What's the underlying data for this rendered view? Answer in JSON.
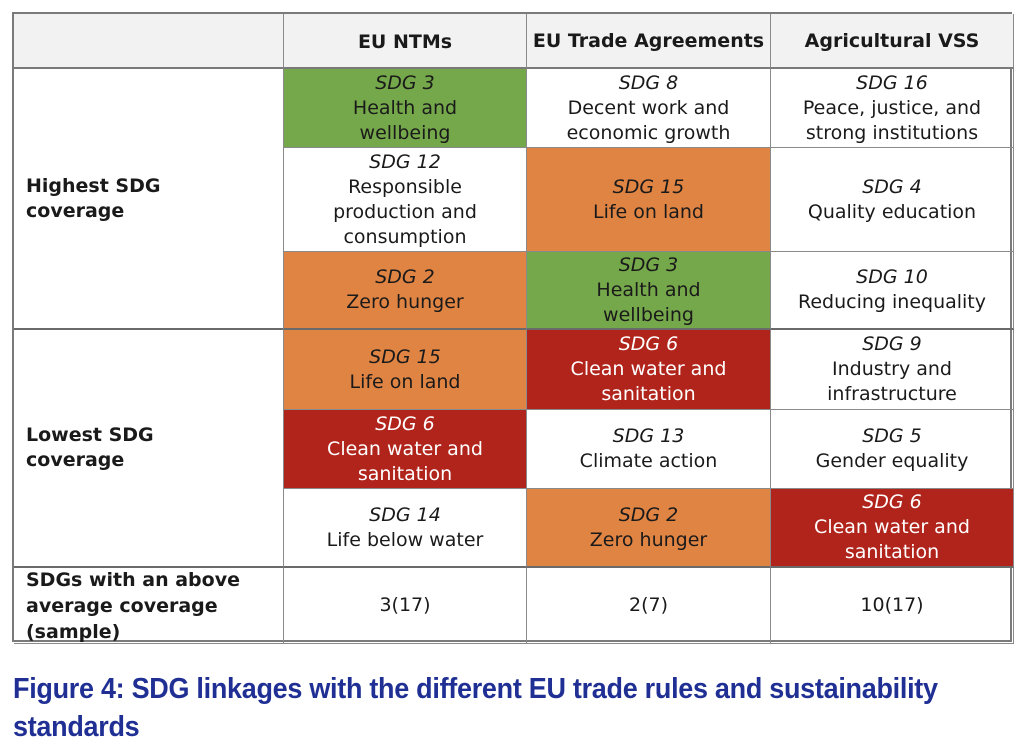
{
  "table": {
    "columns": [
      "",
      "EU NTMs",
      "EU Trade Agreements",
      "Agricultural VSS"
    ],
    "colors": {
      "green": "#75a84a",
      "orange": "#e08444",
      "red": "#b0241b"
    },
    "groups": [
      {
        "label": "Highest SDG coverage",
        "rows": [
          [
            {
              "sdg": "SDG 3",
              "name": "Health and wellbeing",
              "color": "green"
            },
            {
              "sdg": "SDG 8",
              "name": "Decent work and economic growth",
              "color": "none"
            },
            {
              "sdg": "SDG 16",
              "name": "Peace, justice, and strong institutions",
              "color": "none"
            }
          ],
          [
            {
              "sdg": "SDG 12",
              "name": "Responsible production and consumption",
              "color": "none"
            },
            {
              "sdg": "SDG 15",
              "name": "Life on land",
              "color": "orange"
            },
            {
              "sdg": "SDG 4",
              "name": "Quality education",
              "color": "none"
            }
          ],
          [
            {
              "sdg": "SDG 2",
              "name": "Zero hunger",
              "color": "orange"
            },
            {
              "sdg": "SDG 3",
              "name": "Health and wellbeing",
              "color": "green"
            },
            {
              "sdg": "SDG 10",
              "name": "Reducing inequality",
              "color": "none"
            }
          ]
        ]
      },
      {
        "label": "Lowest SDG coverage",
        "rows": [
          [
            {
              "sdg": "SDG 15",
              "name": "Life on land",
              "color": "orange"
            },
            {
              "sdg": "SDG 6",
              "name": "Clean water and sanitation",
              "color": "red"
            },
            {
              "sdg": "SDG 9",
              "name": "Industry and infrastructure",
              "color": "none"
            }
          ],
          [
            {
              "sdg": "SDG 6",
              "name": "Clean water and sanitation",
              "color": "red"
            },
            {
              "sdg": "SDG 13",
              "name": "Climate action",
              "color": "none"
            },
            {
              "sdg": "SDG 5",
              "name": "Gender equality",
              "color": "none"
            }
          ],
          [
            {
              "sdg": "SDG 14",
              "name": "Life below water",
              "color": "none"
            },
            {
              "sdg": "SDG 2",
              "name": "Zero hunger",
              "color": "orange"
            },
            {
              "sdg": "SDG 6",
              "name": "Clean water and sanitation",
              "color": "red"
            }
          ]
        ]
      }
    ],
    "summary": {
      "label": "SDGs with an above average coverage (sample)",
      "values": [
        "3(17)",
        "2(7)",
        "10(17)"
      ]
    }
  },
  "caption": "Figure 4: SDG linkages with the different EU trade rules and sustainability standards"
}
